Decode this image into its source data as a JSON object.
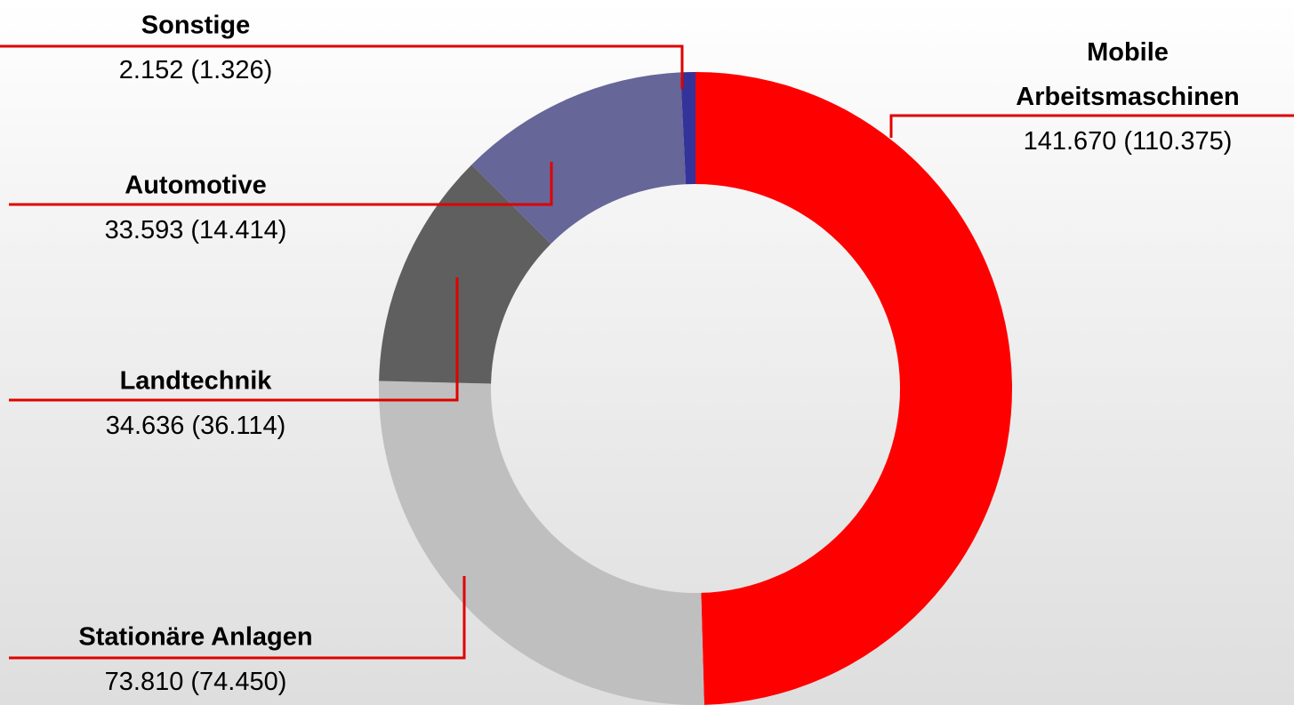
{
  "chart_data": {
    "type": "donut",
    "categories": [
      "Mobile Arbeitsmaschinen",
      "Stationäre Anlagen",
      "Landtechnik",
      "Automotive",
      "Sonstige"
    ],
    "values": [
      141670,
      73810,
      34636,
      33593,
      2152
    ],
    "value_labels": [
      "141.670",
      "73.810",
      "34.636",
      "33.593",
      "2.152"
    ],
    "previous_values": [
      110375,
      74450,
      36114,
      14414,
      1326
    ],
    "previous_value_labels": [
      "(110.375)",
      "(74.450)",
      "(36.114)",
      "(14.414)",
      "(1.326)"
    ],
    "colors": [
      "#ff0000",
      "#bfbfbf",
      "#5f5f5f",
      "#666699",
      "#333399"
    ],
    "leader_color": "#e00000"
  }
}
